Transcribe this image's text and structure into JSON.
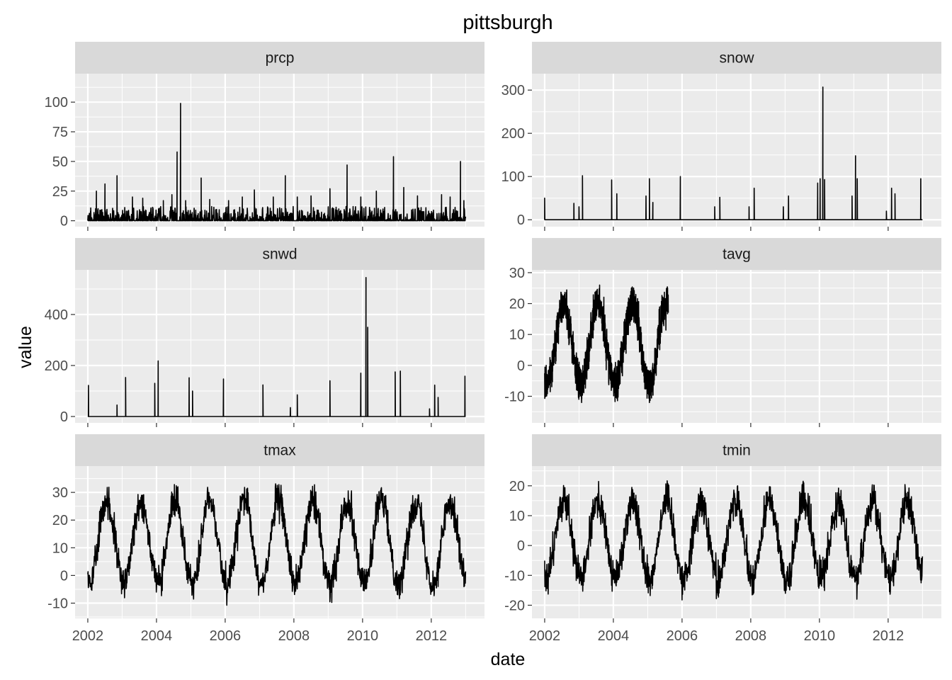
{
  "chart_data": {
    "type": "line",
    "title": "pittsburgh",
    "xlabel": "date",
    "ylabel": "value",
    "layout": "facet_wrap, 3 rows x 2 columns, free y scales",
    "grid": true,
    "legend": "none",
    "colors": {
      "panel_background": "#EBEBEB",
      "strip_background": "#D9D9D9",
      "grid": "#FFFFFF",
      "line": "#000000",
      "tick_text": "#4D4D4D"
    },
    "x_ticks": [
      "2002",
      "2004",
      "2006",
      "2008",
      "2010",
      "2012"
    ],
    "x_tick_values": [
      2002,
      2004,
      2006,
      2008,
      2010,
      2012
    ],
    "xlim": [
      2001.63,
      2013.55
    ],
    "facets": [
      {
        "name": "prcp",
        "ylim": [
          -5,
          124
        ],
        "y_ticks": [
          0,
          25,
          50,
          75,
          100
        ],
        "y_tick_labels": [
          "0",
          "25",
          "50",
          "75",
          "100"
        ],
        "kind": "spiky",
        "x_range": [
          2002.0,
          2013.0
        ],
        "peaks": [
          {
            "x": 2002.08,
            "y": 8
          },
          {
            "x": 2002.25,
            "y": 25
          },
          {
            "x": 2002.5,
            "y": 31
          },
          {
            "x": 2002.85,
            "y": 38
          },
          {
            "x": 2003.3,
            "y": 20
          },
          {
            "x": 2003.6,
            "y": 19
          },
          {
            "x": 2004.2,
            "y": 17
          },
          {
            "x": 2004.45,
            "y": 22
          },
          {
            "x": 2004.6,
            "y": 58
          },
          {
            "x": 2004.7,
            "y": 99
          },
          {
            "x": 2004.85,
            "y": 17
          },
          {
            "x": 2005.3,
            "y": 36
          },
          {
            "x": 2005.55,
            "y": 18
          },
          {
            "x": 2006.1,
            "y": 17
          },
          {
            "x": 2006.5,
            "y": 20
          },
          {
            "x": 2006.85,
            "y": 26
          },
          {
            "x": 2007.4,
            "y": 20
          },
          {
            "x": 2007.75,
            "y": 38
          },
          {
            "x": 2008.1,
            "y": 20
          },
          {
            "x": 2008.5,
            "y": 21
          },
          {
            "x": 2009.05,
            "y": 27
          },
          {
            "x": 2009.55,
            "y": 47
          },
          {
            "x": 2009.95,
            "y": 20
          },
          {
            "x": 2010.4,
            "y": 25
          },
          {
            "x": 2010.9,
            "y": 54
          },
          {
            "x": 2011.2,
            "y": 28
          },
          {
            "x": 2011.6,
            "y": 21
          },
          {
            "x": 2012.3,
            "y": 22
          },
          {
            "x": 2012.55,
            "y": 20
          },
          {
            "x": 2012.85,
            "y": 50
          },
          {
            "x": 2012.95,
            "y": 17
          }
        ],
        "base_noise": 12
      },
      {
        "name": "snow",
        "ylim": [
          -16,
          338
        ],
        "y_ticks": [
          0,
          100,
          200,
          300
        ],
        "y_tick_labels": [
          "0",
          "100",
          "200",
          "300"
        ],
        "kind": "spiky",
        "x_range": [
          2002.0,
          2013.0
        ],
        "peaks": [
          {
            "x": 2002.0,
            "y": 50
          },
          {
            "x": 2002.85,
            "y": 38
          },
          {
            "x": 2003.0,
            "y": 30
          },
          {
            "x": 2003.1,
            "y": 102
          },
          {
            "x": 2003.95,
            "y": 92
          },
          {
            "x": 2004.1,
            "y": 60
          },
          {
            "x": 2004.95,
            "y": 55
          },
          {
            "x": 2005.05,
            "y": 95
          },
          {
            "x": 2005.15,
            "y": 40
          },
          {
            "x": 2005.95,
            "y": 100
          },
          {
            "x": 2006.95,
            "y": 30
          },
          {
            "x": 2007.1,
            "y": 52
          },
          {
            "x": 2007.95,
            "y": 30
          },
          {
            "x": 2008.1,
            "y": 73
          },
          {
            "x": 2008.95,
            "y": 30
          },
          {
            "x": 2009.1,
            "y": 55
          },
          {
            "x": 2009.95,
            "y": 85
          },
          {
            "x": 2010.02,
            "y": 95
          },
          {
            "x": 2010.1,
            "y": 307
          },
          {
            "x": 2010.15,
            "y": 93
          },
          {
            "x": 2010.95,
            "y": 55
          },
          {
            "x": 2011.05,
            "y": 148
          },
          {
            "x": 2011.1,
            "y": 95
          },
          {
            "x": 2011.95,
            "y": 20
          },
          {
            "x": 2012.1,
            "y": 73
          },
          {
            "x": 2012.2,
            "y": 60
          },
          {
            "x": 2012.95,
            "y": 95
          }
        ],
        "base_noise": 0
      },
      {
        "name": "snwd",
        "ylim": [
          -25,
          575
        ],
        "y_ticks": [
          0,
          200,
          400
        ],
        "y_tick_labels": [
          "0",
          "200",
          "400"
        ],
        "kind": "spiky",
        "x_range": [
          2002.0,
          2013.0
        ],
        "peaks": [
          {
            "x": 2002.02,
            "y": 122
          },
          {
            "x": 2002.85,
            "y": 45
          },
          {
            "x": 2003.1,
            "y": 153
          },
          {
            "x": 2003.95,
            "y": 130
          },
          {
            "x": 2004.05,
            "y": 218
          },
          {
            "x": 2004.95,
            "y": 152
          },
          {
            "x": 2005.05,
            "y": 100
          },
          {
            "x": 2005.95,
            "y": 147
          },
          {
            "x": 2007.1,
            "y": 124
          },
          {
            "x": 2007.9,
            "y": 35
          },
          {
            "x": 2008.1,
            "y": 85
          },
          {
            "x": 2009.05,
            "y": 140
          },
          {
            "x": 2009.95,
            "y": 170
          },
          {
            "x": 2010.1,
            "y": 545
          },
          {
            "x": 2010.15,
            "y": 350
          },
          {
            "x": 2010.95,
            "y": 175
          },
          {
            "x": 2011.1,
            "y": 178
          },
          {
            "x": 2011.95,
            "y": 30
          },
          {
            "x": 2012.1,
            "y": 123
          },
          {
            "x": 2012.2,
            "y": 75
          },
          {
            "x": 2012.98,
            "y": 158
          }
        ],
        "base_noise": 0
      },
      {
        "name": "tavg",
        "ylim": [
          -18.6,
          30.9
        ],
        "y_ticks": [
          -10,
          0,
          10,
          20,
          30
        ],
        "y_tick_labels": [
          "-10",
          "0",
          "10",
          "20",
          "30"
        ],
        "kind": "seasonal",
        "x_range": [
          2002.0,
          2005.6
        ],
        "mean": 7,
        "amplitude": 13,
        "noise": 6,
        "min": -16,
        "max": 27
      },
      {
        "name": "tmax",
        "ylim": [
          -15.5,
          39.5
        ],
        "y_ticks": [
          -10,
          0,
          10,
          20,
          30
        ],
        "y_tick_labels": [
          "-10",
          "0",
          "10",
          "20",
          "30"
        ],
        "kind": "seasonal",
        "x_range": [
          2002.0,
          2013.0
        ],
        "mean": 12,
        "amplitude": 15,
        "noise": 6,
        "min": -13,
        "max": 37
      },
      {
        "name": "tmin",
        "ylim": [
          -24.4,
          26.6
        ],
        "y_ticks": [
          -20,
          -10,
          0,
          10,
          20
        ],
        "y_tick_labels": [
          "-20",
          "-10",
          "0",
          "10",
          "20"
        ],
        "kind": "seasonal",
        "x_range": [
          2002.0,
          2013.0
        ],
        "mean": 2,
        "amplitude": 13,
        "noise": 6,
        "min": -22,
        "max": 24
      }
    ]
  }
}
